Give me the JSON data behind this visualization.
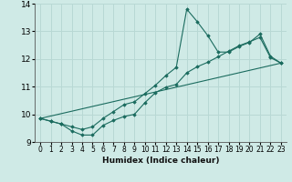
{
  "xlabel": "Humidex (Indice chaleur)",
  "bg_color": "#cfeae6",
  "grid_color": "#b8d8d4",
  "line_color": "#1a6b5e",
  "xlim": [
    -0.5,
    23.5
  ],
  "ylim": [
    9,
    14
  ],
  "xticks": [
    0,
    1,
    2,
    3,
    4,
    5,
    6,
    7,
    8,
    9,
    10,
    11,
    12,
    13,
    14,
    15,
    16,
    17,
    18,
    19,
    20,
    21,
    22,
    23
  ],
  "yticks": [
    9,
    10,
    11,
    12,
    13,
    14
  ],
  "series1_x": [
    0,
    1,
    2,
    3,
    4,
    5,
    6,
    7,
    8,
    9,
    10,
    11,
    12,
    13,
    14,
    15,
    16,
    17,
    18,
    19,
    20,
    21,
    22,
    23
  ],
  "series1_y": [
    9.85,
    9.75,
    9.65,
    9.55,
    9.45,
    9.55,
    9.85,
    10.1,
    10.35,
    10.45,
    10.75,
    11.05,
    11.4,
    11.7,
    13.8,
    13.35,
    12.85,
    12.25,
    12.25,
    12.45,
    12.6,
    12.9,
    12.1,
    11.85
  ],
  "series2_x": [
    0,
    1,
    2,
    3,
    4,
    5,
    6,
    7,
    8,
    9,
    10,
    11,
    12,
    13,
    14,
    15,
    16,
    17,
    18,
    19,
    20,
    21,
    22,
    23
  ],
  "series2_y": [
    9.85,
    9.75,
    9.65,
    9.4,
    9.25,
    9.25,
    9.6,
    9.78,
    9.92,
    10.0,
    10.42,
    10.78,
    10.98,
    11.08,
    11.5,
    11.72,
    11.88,
    12.08,
    12.28,
    12.48,
    12.62,
    12.78,
    12.05,
    11.85
  ],
  "series3_x": [
    0,
    23
  ],
  "series3_y": [
    9.85,
    11.85
  ]
}
